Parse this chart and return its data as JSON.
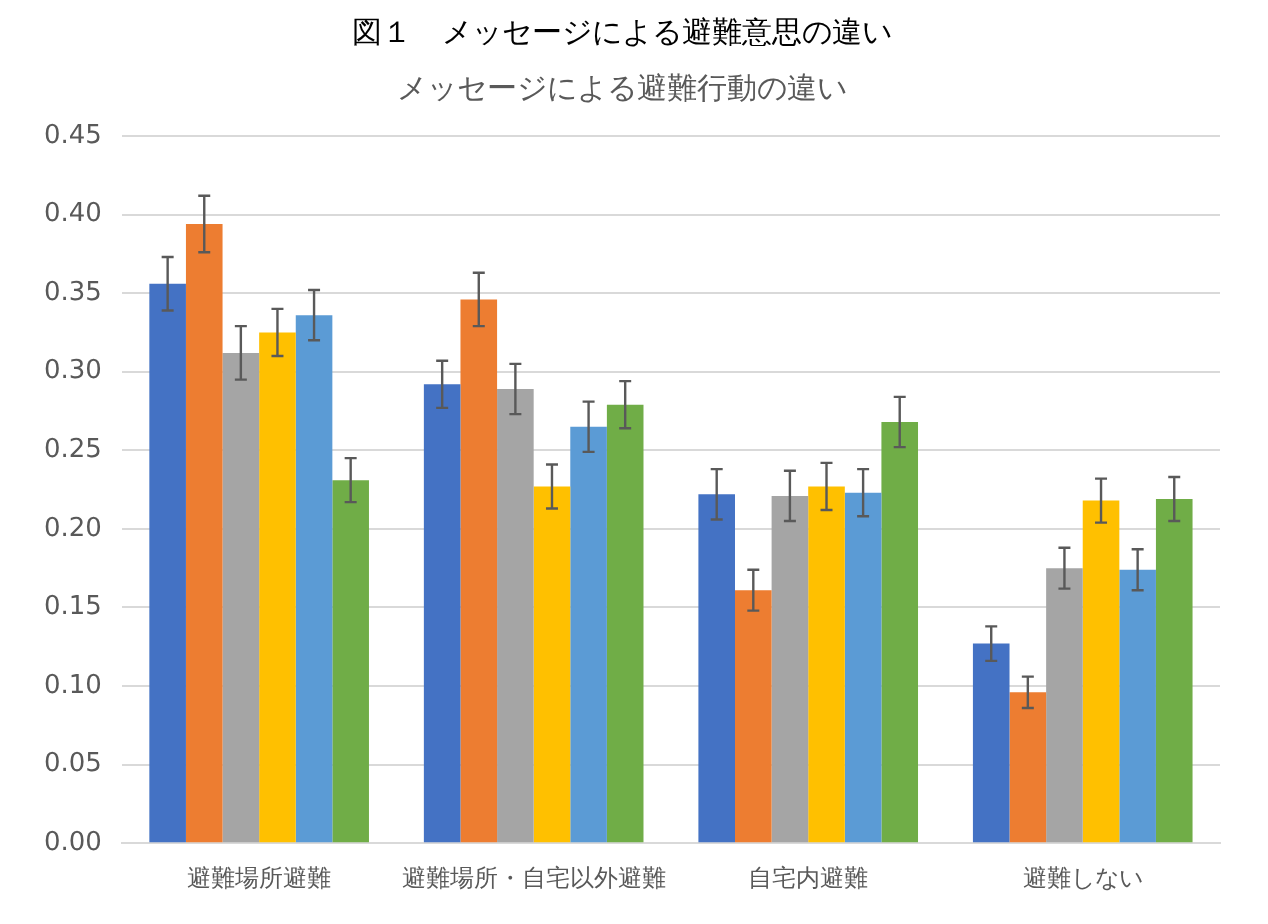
{
  "chart_data": {
    "type": "bar",
    "title": "図１　メッセージによる避難意思の違い",
    "subtitle": "メッセージによる避難行動の違い",
    "categories": [
      "避難場所避難",
      "避難場所・自宅以外避難",
      "自宅内避難",
      "避難しない"
    ],
    "series": [
      {
        "color": "#4472c4",
        "values": [
          0.356,
          0.292,
          0.222,
          0.127
        ],
        "errors": [
          0.017,
          0.015,
          0.016,
          0.011
        ]
      },
      {
        "color": "#ed7d31",
        "values": [
          0.394,
          0.346,
          0.161,
          0.096
        ],
        "errors": [
          0.018,
          0.017,
          0.013,
          0.01
        ]
      },
      {
        "color": "#a5a5a5",
        "values": [
          0.312,
          0.289,
          0.221,
          0.175
        ],
        "errors": [
          0.017,
          0.016,
          0.016,
          0.013
        ]
      },
      {
        "color": "#ffc000",
        "values": [
          0.325,
          0.227,
          0.227,
          0.218
        ],
        "errors": [
          0.015,
          0.014,
          0.015,
          0.014
        ]
      },
      {
        "color": "#5b9bd5",
        "values": [
          0.336,
          0.265,
          0.223,
          0.174
        ],
        "errors": [
          0.016,
          0.016,
          0.015,
          0.013
        ]
      },
      {
        "color": "#70ad47",
        "values": [
          0.231,
          0.279,
          0.268,
          0.219
        ],
        "errors": [
          0.014,
          0.015,
          0.016,
          0.014
        ]
      }
    ],
    "ylim": [
      0,
      0.45
    ],
    "yticks": [
      {
        "value": 0,
        "label": "0.00"
      },
      0.05,
      {
        "value": 0.1,
        "label": "0.10"
      },
      0.15,
      {
        "value": 0.2,
        "label": "0.20"
      },
      0.25,
      {
        "value": 0.3,
        "label": "0.30"
      },
      0.35,
      {
        "value": 0.4,
        "label": "0.40"
      },
      0.45
    ],
    "grid": "y",
    "legend": false
  }
}
